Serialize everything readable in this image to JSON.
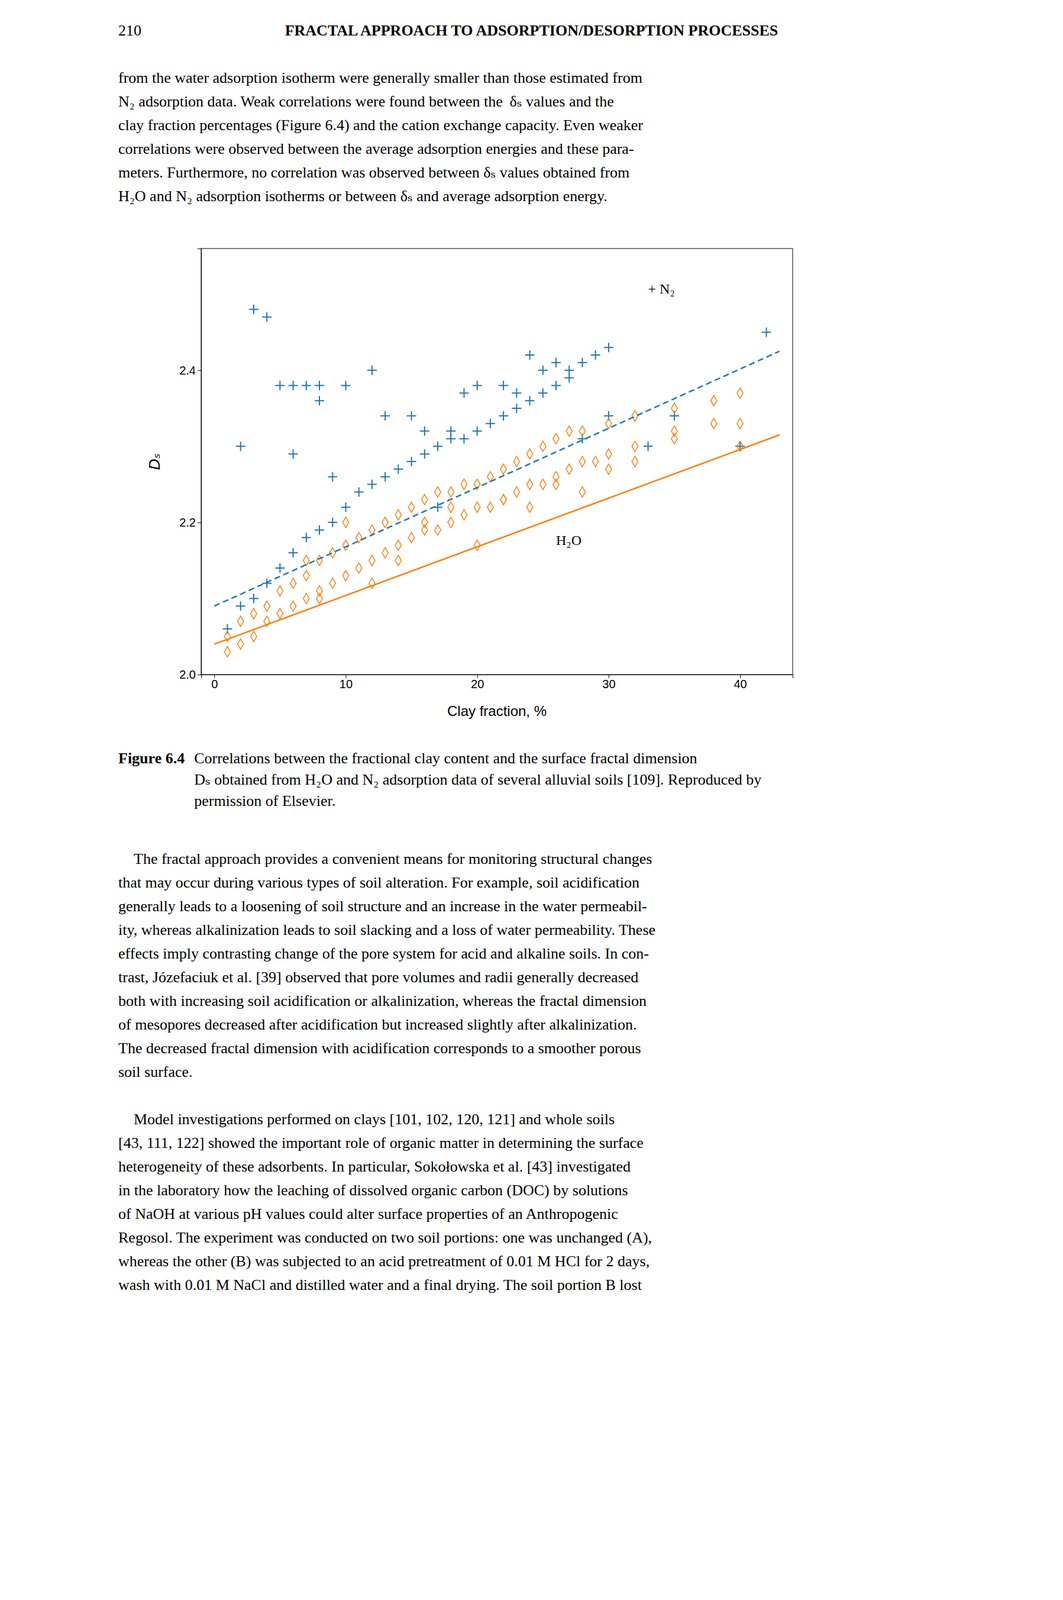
{
  "page_number": "210",
  "page_header": "FRACTAL APPROACH TO ADSORPTION/DESORPTION PROCESSES",
  "body_text_1": [
    "from the water adsorption isotherm were generally smaller than those estimated from",
    "N₂ adsorption data. Weak correlations were found between the  δₛ values and the",
    "clay fraction percentages (Figure 6.4) and the cation exchange capacity. Even weaker",
    "correlations were observed between the average adsorption energies and these para-",
    "meters. Furthermore, no correlation was observed between δₛ values obtained from",
    "H₂O and N₂ adsorption isotherms or between δₛ and average adsorption energy."
  ],
  "chart_data": {
    "type": "scatter",
    "xlabel": "Clay fraction, %",
    "ylabel": "Dₛ",
    "xlim": [
      -1,
      44
    ],
    "ylim": [
      2.0,
      2.56
    ],
    "xticks": [
      0,
      10,
      20,
      30,
      40
    ],
    "yticks": [
      {
        "value": 2.0,
        "label": "2.0"
      },
      2.2,
      2.4
    ],
    "grid": false,
    "series": [
      {
        "type": "scatter",
        "marker": "plus",
        "x": [
          1,
          2,
          3,
          4,
          5,
          6,
          7,
          8,
          9,
          10,
          11,
          12,
          13,
          14,
          15,
          16,
          17,
          18,
          19,
          20,
          21,
          22,
          23,
          24,
          25,
          26,
          27,
          28,
          29,
          30,
          6,
          7,
          8,
          9,
          10,
          12,
          13,
          15,
          16,
          17,
          18,
          19,
          20,
          22,
          23,
          24,
          25,
          26,
          27,
          28,
          30,
          33,
          35,
          40,
          42,
          5,
          6,
          8,
          2,
          3,
          4
        ],
        "values": [
          2.06,
          2.09,
          2.1,
          2.12,
          2.14,
          2.16,
          2.18,
          2.19,
          2.2,
          2.22,
          2.24,
          2.25,
          2.26,
          2.27,
          2.28,
          2.29,
          2.3,
          2.31,
          2.31,
          2.32,
          2.33,
          2.34,
          2.35,
          2.36,
          2.37,
          2.38,
          2.4,
          2.41,
          2.42,
          2.43,
          2.38,
          2.38,
          2.36,
          2.26,
          2.38,
          2.4,
          2.34,
          2.34,
          2.32,
          2.22,
          2.32,
          2.37,
          2.38,
          2.38,
          2.37,
          2.42,
          2.4,
          2.41,
          2.39,
          2.31,
          2.34,
          2.3,
          2.34,
          2.3,
          2.45,
          2.38,
          2.29,
          2.38,
          2.3,
          2.48,
          2.47
        ]
      },
      {
        "type": "scatter",
        "marker": "diamond",
        "x": [
          1,
          2,
          3,
          4,
          5,
          6,
          7,
          8,
          9,
          10,
          11,
          12,
          13,
          14,
          15,
          16,
          17,
          18,
          19,
          20,
          21,
          22,
          23,
          24,
          25,
          26,
          27,
          28,
          29,
          30,
          32,
          35,
          38,
          40,
          1,
          2,
          3,
          4,
          5,
          6,
          7,
          8,
          9,
          10,
          11,
          12,
          13,
          14,
          15,
          16,
          17,
          18,
          19,
          20,
          21,
          22,
          23,
          24,
          25,
          26,
          27,
          28,
          30,
          32,
          35,
          38,
          40,
          7,
          8,
          10,
          12,
          14,
          16,
          18,
          20,
          22,
          24,
          26,
          28,
          30,
          32,
          35,
          40
        ],
        "values": [
          2.03,
          2.04,
          2.05,
          2.07,
          2.08,
          2.09,
          2.1,
          2.11,
          2.12,
          2.13,
          2.14,
          2.15,
          2.16,
          2.17,
          2.18,
          2.19,
          2.19,
          2.2,
          2.21,
          2.22,
          2.22,
          2.23,
          2.24,
          2.25,
          2.25,
          2.26,
          2.27,
          2.28,
          2.28,
          2.29,
          2.3,
          2.32,
          2.33,
          2.33,
          2.05,
          2.07,
          2.08,
          2.09,
          2.11,
          2.12,
          2.13,
          2.15,
          2.16,
          2.17,
          2.18,
          2.19,
          2.2,
          2.21,
          2.22,
          2.23,
          2.24,
          2.24,
          2.25,
          2.25,
          2.26,
          2.27,
          2.28,
          2.29,
          2.3,
          2.31,
          2.32,
          2.32,
          2.33,
          2.34,
          2.35,
          2.36,
          2.37,
          2.15,
          2.1,
          2.2,
          2.12,
          2.15,
          2.2,
          2.22,
          2.17,
          2.23,
          2.22,
          2.25,
          2.24,
          2.27,
          2.28,
          2.31,
          2.3
        ]
      },
      {
        "type": "line",
        "line_style": "dashed",
        "x": [
          0,
          43
        ],
        "values": [
          2.09,
          2.425
        ]
      },
      {
        "type": "line",
        "line_style": "solid",
        "x": [
          0,
          43
        ],
        "values": [
          2.04,
          2.315
        ]
      }
    ],
    "annotations": [
      {
        "text": "+ N₂",
        "x": 33,
        "y": 2.505
      },
      {
        "text": "H₂O",
        "x": 26,
        "y": 2.175
      }
    ]
  },
  "caption": {
    "label": "Figure 6.4",
    "lines": [
      "Correlations between the fractional clay content and the surface fractal dimension",
      "Dₛ obtained from H₂O and N₂ adsorption data of several alluvial soils [109]. Reproduced by",
      "permission of Elsevier."
    ]
  },
  "body_text_2": [
    " The fractal approach provides a convenient means for monitoring structural changes",
    "that may occur during various types of soil alteration. For example, soil acidification",
    "generally leads to a loosening of soil structure and an increase in the water permeabil-",
    "ity, whereas alkalinization leads to soil slacking and a loss of water permeability. These",
    "effects imply contrasting change of the pore system for acid and alkaline soils. In con-",
    "trast, Józefaciuk et al. [39] observed that pore volumes and radii generally decreased",
    "both with increasing soil acidification or alkalinization, whereas the fractal dimension",
    "of mesopores decreased after acidification but increased slightly after alkalinization.",
    "The decreased fractal dimension with acidification corresponds to a smoother porous",
    "soil surface."
  ],
  "body_text_3": [
    " Model investigations performed on clays [101, 102, 120, 121] and whole soils",
    "[43, 111, 122] showed the important role of organic matter in determining the surface",
    "heterogeneity of these adsorbents. In particular, Sokołowska et al. [43] investigated",
    "in the laboratory how the leaching of dissolved organic carbon (DOC) by solutions",
    "of NaOH at various pH values could alter surface properties of an Anthropogenic",
    "Regosol. The experiment was conducted on two soil portions: one was unchanged (A),",
    "whereas the other (B) was subjected to an acid pretreatment of 0.01 Μ HCl for 2 days,",
    "wash with 0.01 Μ NaCl and distilled water and a final drying. The soil portion B lost"
  ]
}
